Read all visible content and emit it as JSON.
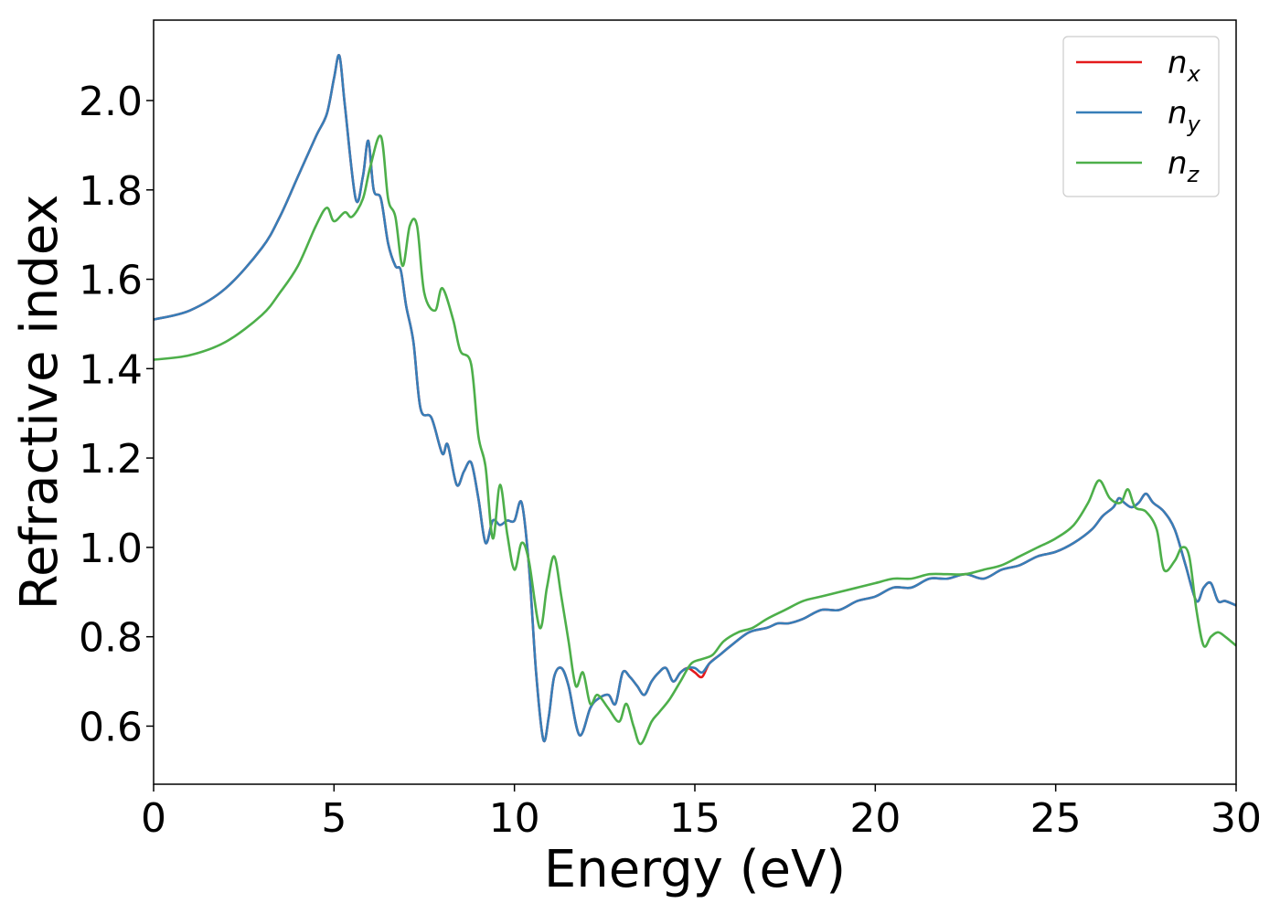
{
  "chart_data": {
    "type": "line",
    "title": "",
    "xlabel": "Energy (eV)",
    "ylabel": "Refractive index",
    "xlim": [
      0,
      30
    ],
    "ylim": [
      0.47,
      2.18
    ],
    "xticks": [
      0,
      5,
      10,
      15,
      20,
      25,
      30
    ],
    "yticks": [
      0.6,
      0.8,
      1.0,
      1.2,
      1.4,
      1.6,
      1.8,
      2.0
    ],
    "ytick_labels": [
      "0.6",
      "0.8",
      "1.0",
      "1.2",
      "1.4",
      "1.6",
      "1.8",
      "2.0"
    ],
    "grid": false,
    "legend": "top-right",
    "series": [
      {
        "name": "n_x",
        "legend_base": "n",
        "legend_sub": "x",
        "color": "#e41a1c",
        "x": [
          0,
          1,
          2,
          3,
          3.5,
          4,
          4.5,
          4.8,
          5.0,
          5.15,
          5.3,
          5.6,
          5.8,
          5.95,
          6.1,
          6.3,
          6.5,
          6.7,
          6.85,
          7.0,
          7.2,
          7.4,
          7.7,
          8.0,
          8.15,
          8.4,
          8.6,
          8.8,
          9.0,
          9.2,
          9.4,
          9.6,
          9.8,
          10.0,
          10.2,
          10.4,
          10.6,
          10.8,
          10.95,
          11.1,
          11.3,
          11.5,
          11.8,
          12.1,
          12.3,
          12.6,
          12.8,
          13.0,
          13.2,
          13.4,
          13.6,
          13.8,
          14.0,
          14.2,
          14.4,
          14.6,
          14.8,
          15.0,
          15.2,
          15.4,
          15.7,
          16.0,
          16.5,
          17.0,
          17.3,
          17.6,
          18.0,
          18.5,
          19.0,
          19.5,
          20.0,
          20.5,
          21.0,
          21.5,
          22.0,
          22.5,
          23.0,
          23.5,
          24.0,
          24.5,
          25.0,
          25.5,
          26.0,
          26.3,
          26.6,
          26.75,
          26.9,
          27.1,
          27.3,
          27.5,
          27.7,
          28.0,
          28.3,
          28.6,
          28.9,
          29.1,
          29.3,
          29.5,
          29.7,
          30.0
        ],
        "y": [
          1.51,
          1.53,
          1.58,
          1.67,
          1.74,
          1.83,
          1.92,
          1.97,
          2.05,
          2.1,
          1.99,
          1.78,
          1.83,
          1.91,
          1.8,
          1.78,
          1.68,
          1.63,
          1.62,
          1.54,
          1.46,
          1.31,
          1.29,
          1.21,
          1.23,
          1.14,
          1.17,
          1.19,
          1.11,
          1.01,
          1.06,
          1.05,
          1.06,
          1.06,
          1.1,
          0.96,
          0.72,
          0.57,
          0.62,
          0.71,
          0.73,
          0.69,
          0.58,
          0.64,
          0.66,
          0.67,
          0.65,
          0.72,
          0.71,
          0.69,
          0.67,
          0.7,
          0.72,
          0.73,
          0.7,
          0.72,
          0.73,
          0.72,
          0.71,
          0.74,
          0.76,
          0.78,
          0.81,
          0.82,
          0.83,
          0.83,
          0.84,
          0.86,
          0.86,
          0.88,
          0.89,
          0.91,
          0.91,
          0.93,
          0.93,
          0.94,
          0.93,
          0.95,
          0.96,
          0.98,
          0.99,
          1.01,
          1.04,
          1.07,
          1.09,
          1.11,
          1.1,
          1.09,
          1.1,
          1.12,
          1.1,
          1.08,
          1.04,
          0.96,
          0.88,
          0.91,
          0.92,
          0.88,
          0.88,
          0.87
        ]
      },
      {
        "name": "n_y",
        "legend_base": "n",
        "legend_sub": "y",
        "color": "#377eb8",
        "x": [
          0,
          1,
          2,
          3,
          3.5,
          4,
          4.5,
          4.8,
          5.0,
          5.15,
          5.3,
          5.6,
          5.8,
          5.95,
          6.1,
          6.3,
          6.5,
          6.7,
          6.85,
          7.0,
          7.2,
          7.4,
          7.7,
          8.0,
          8.15,
          8.4,
          8.6,
          8.8,
          9.0,
          9.2,
          9.4,
          9.6,
          9.8,
          10.0,
          10.2,
          10.4,
          10.6,
          10.8,
          10.95,
          11.1,
          11.3,
          11.5,
          11.8,
          12.1,
          12.3,
          12.6,
          12.8,
          13.0,
          13.2,
          13.4,
          13.6,
          13.8,
          14.0,
          14.2,
          14.4,
          14.6,
          14.8,
          15.0,
          15.2,
          15.4,
          15.7,
          16.0,
          16.5,
          17.0,
          17.3,
          17.6,
          18.0,
          18.5,
          19.0,
          19.5,
          20.0,
          20.5,
          21.0,
          21.5,
          22.0,
          22.5,
          23.0,
          23.5,
          24.0,
          24.5,
          25.0,
          25.5,
          26.0,
          26.3,
          26.6,
          26.75,
          26.9,
          27.1,
          27.3,
          27.5,
          27.7,
          28.0,
          28.3,
          28.6,
          28.9,
          29.1,
          29.3,
          29.5,
          29.7,
          30.0
        ],
        "y": [
          1.51,
          1.53,
          1.58,
          1.67,
          1.74,
          1.83,
          1.92,
          1.97,
          2.05,
          2.1,
          1.99,
          1.78,
          1.83,
          1.91,
          1.8,
          1.78,
          1.68,
          1.63,
          1.62,
          1.54,
          1.46,
          1.31,
          1.29,
          1.21,
          1.23,
          1.14,
          1.17,
          1.19,
          1.11,
          1.01,
          1.06,
          1.05,
          1.06,
          1.06,
          1.1,
          0.96,
          0.72,
          0.57,
          0.62,
          0.71,
          0.73,
          0.69,
          0.58,
          0.64,
          0.66,
          0.67,
          0.65,
          0.72,
          0.71,
          0.69,
          0.67,
          0.7,
          0.72,
          0.73,
          0.7,
          0.72,
          0.73,
          0.73,
          0.72,
          0.74,
          0.76,
          0.78,
          0.81,
          0.82,
          0.83,
          0.83,
          0.84,
          0.86,
          0.86,
          0.88,
          0.89,
          0.91,
          0.91,
          0.93,
          0.93,
          0.94,
          0.93,
          0.95,
          0.96,
          0.98,
          0.99,
          1.01,
          1.04,
          1.07,
          1.09,
          1.11,
          1.1,
          1.09,
          1.1,
          1.12,
          1.1,
          1.08,
          1.04,
          0.96,
          0.88,
          0.91,
          0.92,
          0.88,
          0.88,
          0.87
        ]
      },
      {
        "name": "n_z",
        "legend_base": "n",
        "legend_sub": "z",
        "color": "#4daf4a",
        "x": [
          0,
          1,
          2,
          3,
          3.5,
          4,
          4.5,
          4.8,
          5.0,
          5.3,
          5.5,
          5.8,
          6.0,
          6.3,
          6.5,
          6.7,
          6.9,
          7.1,
          7.3,
          7.5,
          7.8,
          8.0,
          8.3,
          8.5,
          8.8,
          9.0,
          9.2,
          9.4,
          9.6,
          9.8,
          10.0,
          10.2,
          10.4,
          10.7,
          10.9,
          11.1,
          11.3,
          11.5,
          11.7,
          11.9,
          12.1,
          12.3,
          12.6,
          12.9,
          13.1,
          13.3,
          13.5,
          13.8,
          14.0,
          14.3,
          14.6,
          14.9,
          15.2,
          15.5,
          15.8,
          16.2,
          16.6,
          17.0,
          17.5,
          18.0,
          18.5,
          19.0,
          19.5,
          20.0,
          20.5,
          21.0,
          21.5,
          22.0,
          22.5,
          23.0,
          23.5,
          24.0,
          24.5,
          25.0,
          25.5,
          25.9,
          26.2,
          26.5,
          26.8,
          27.0,
          27.2,
          27.5,
          27.8,
          28.0,
          28.3,
          28.5,
          28.7,
          28.9,
          29.1,
          29.3,
          29.5,
          29.7,
          30.0
        ],
        "y": [
          1.42,
          1.43,
          1.46,
          1.52,
          1.57,
          1.63,
          1.72,
          1.76,
          1.73,
          1.75,
          1.74,
          1.78,
          1.85,
          1.92,
          1.78,
          1.74,
          1.63,
          1.72,
          1.72,
          1.57,
          1.53,
          1.58,
          1.51,
          1.44,
          1.41,
          1.25,
          1.18,
          1.02,
          1.14,
          1.03,
          0.95,
          1.01,
          0.97,
          0.82,
          0.91,
          0.98,
          0.89,
          0.79,
          0.69,
          0.72,
          0.65,
          0.67,
          0.64,
          0.61,
          0.65,
          0.6,
          0.56,
          0.61,
          0.63,
          0.66,
          0.7,
          0.74,
          0.75,
          0.76,
          0.79,
          0.81,
          0.82,
          0.84,
          0.86,
          0.88,
          0.89,
          0.9,
          0.91,
          0.92,
          0.93,
          0.93,
          0.94,
          0.94,
          0.94,
          0.95,
          0.96,
          0.98,
          1.0,
          1.02,
          1.05,
          1.1,
          1.15,
          1.11,
          1.1,
          1.13,
          1.09,
          1.08,
          1.04,
          0.95,
          0.97,
          1.0,
          0.98,
          0.86,
          0.78,
          0.8,
          0.81,
          0.8,
          0.78
        ]
      }
    ]
  }
}
